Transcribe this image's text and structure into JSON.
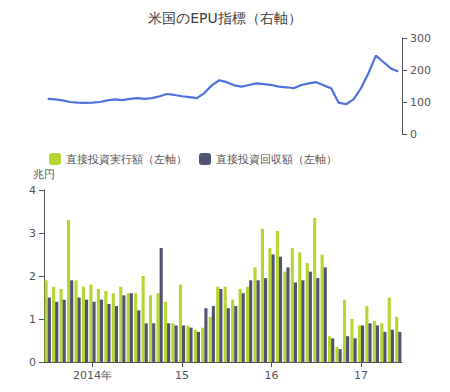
{
  "chart_data": [
    {
      "type": "line",
      "title": "米国のEPU指標（右軸）",
      "categories": [
        null,
        null,
        null,
        null,
        null,
        null,
        "2014年",
        null,
        null,
        null,
        null,
        null,
        null,
        null,
        null,
        null,
        null,
        null,
        "15",
        null,
        null,
        null,
        null,
        null,
        null,
        null,
        null,
        null,
        null,
        null,
        "16",
        null,
        null,
        null,
        null,
        null,
        null,
        null,
        null,
        null,
        null,
        null,
        "17",
        null,
        null,
        null,
        null,
        null
      ],
      "values": [
        110,
        108,
        105,
        100,
        98,
        97,
        98,
        100,
        105,
        108,
        106,
        110,
        112,
        110,
        112,
        118,
        125,
        122,
        118,
        115,
        112,
        128,
        152,
        168,
        162,
        152,
        148,
        153,
        158,
        156,
        153,
        148,
        146,
        143,
        153,
        158,
        162,
        152,
        143,
        98,
        93,
        108,
        143,
        190,
        245,
        225,
        205,
        195
      ],
      "ylim": [
        0,
        300
      ],
      "yticks": [
        0,
        100,
        200,
        300
      ],
      "tick_labels": "y",
      "grid": false
    },
    {
      "type": "bar",
      "ylabel": "兆円",
      "categories": [
        null,
        null,
        null,
        null,
        null,
        null,
        "2014年",
        null,
        null,
        null,
        null,
        null,
        null,
        null,
        null,
        null,
        null,
        null,
        "15",
        null,
        null,
        null,
        null,
        null,
        null,
        null,
        null,
        null,
        null,
        null,
        "16",
        null,
        null,
        null,
        null,
        null,
        null,
        null,
        null,
        null,
        null,
        null,
        "17",
        null,
        null,
        null,
        null,
        null
      ],
      "series": [
        {
          "name": "直接投資実行額（左軸）",
          "values": [
            1.9,
            1.75,
            1.7,
            3.3,
            1.9,
            1.75,
            1.8,
            1.7,
            1.65,
            1.6,
            1.75,
            1.6,
            1.6,
            2.0,
            1.55,
            1.6,
            1.4,
            0.9,
            1.8,
            0.85,
            0.75,
            0.8,
            1.05,
            1.75,
            1.75,
            1.45,
            1.7,
            1.75,
            2.2,
            3.1,
            2.65,
            3.05,
            2.1,
            2.65,
            2.55,
            2.3,
            3.35,
            2.5,
            0.6,
            0.35,
            1.45,
            1.0,
            0.85,
            1.3,
            0.95,
            0.9,
            1.5,
            1.05
          ]
        },
        {
          "name": "直接投資回収額（左軸）",
          "values": [
            1.5,
            1.4,
            1.45,
            1.9,
            1.5,
            1.45,
            1.4,
            1.45,
            1.35,
            1.3,
            1.55,
            1.6,
            1.2,
            0.9,
            0.9,
            2.65,
            0.9,
            0.85,
            0.85,
            0.8,
            0.7,
            1.25,
            1.3,
            1.7,
            1.25,
            1.3,
            1.6,
            1.9,
            1.9,
            1.95,
            2.5,
            2.45,
            2.2,
            1.85,
            1.9,
            2.1,
            1.95,
            2.2,
            0.55,
            0.3,
            0.6,
            0.55,
            0.85,
            0.9,
            0.85,
            0.7,
            0.75,
            0.7
          ]
        }
      ],
      "ylim": [
        0,
        4
      ],
      "yticks": [
        0,
        1,
        2,
        3,
        4
      ],
      "legend": "upper left",
      "grid": false
    }
  ]
}
